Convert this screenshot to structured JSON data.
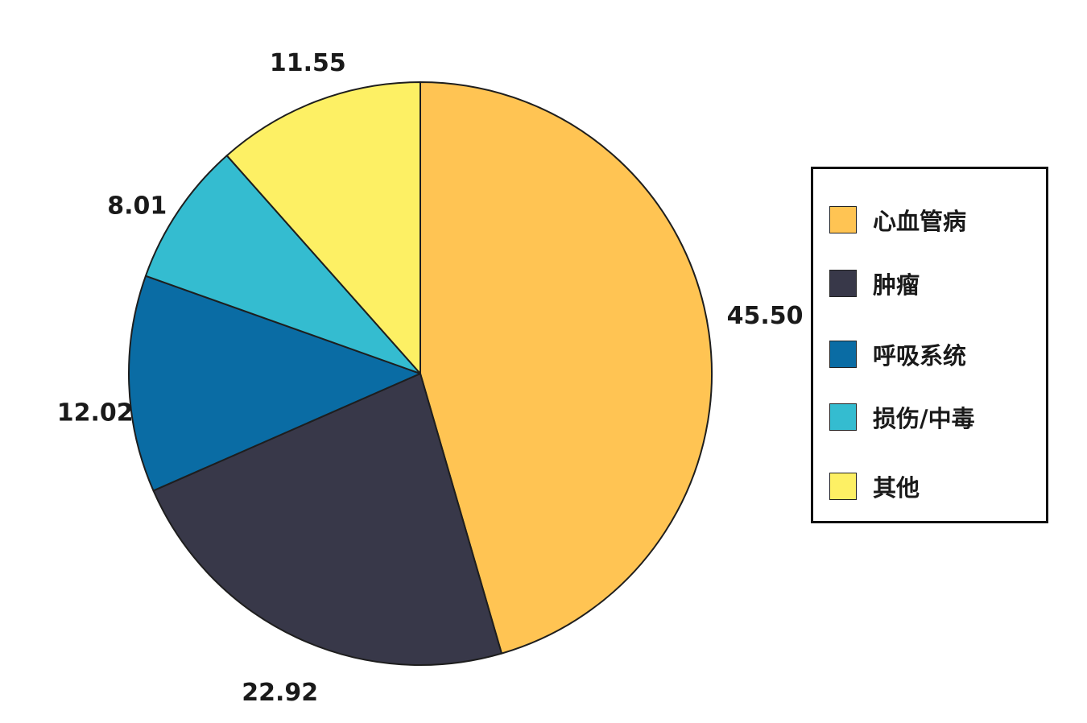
{
  "chart_data": {
    "type": "pie",
    "title": "",
    "categories": [
      "心血管病",
      "肿瘤",
      "呼吸系统",
      "损伤/中毒",
      "其他"
    ],
    "values": [
      45.5,
      22.92,
      12.02,
      8.01,
      11.55
    ],
    "value_labels": [
      "45.50",
      "22.92",
      "12.02",
      "8.01",
      "11.55"
    ],
    "colors": [
      "#FFC453",
      "#383849",
      "#0A6CA4",
      "#34BCD0",
      "#FDF064"
    ],
    "start_angle_deg": 0,
    "direction": "clockwise",
    "legend": {
      "placement": "right",
      "entries": [
        "心血管病",
        "肿瘤",
        "呼吸系统",
        "损伤/中毒",
        "其他"
      ]
    }
  }
}
